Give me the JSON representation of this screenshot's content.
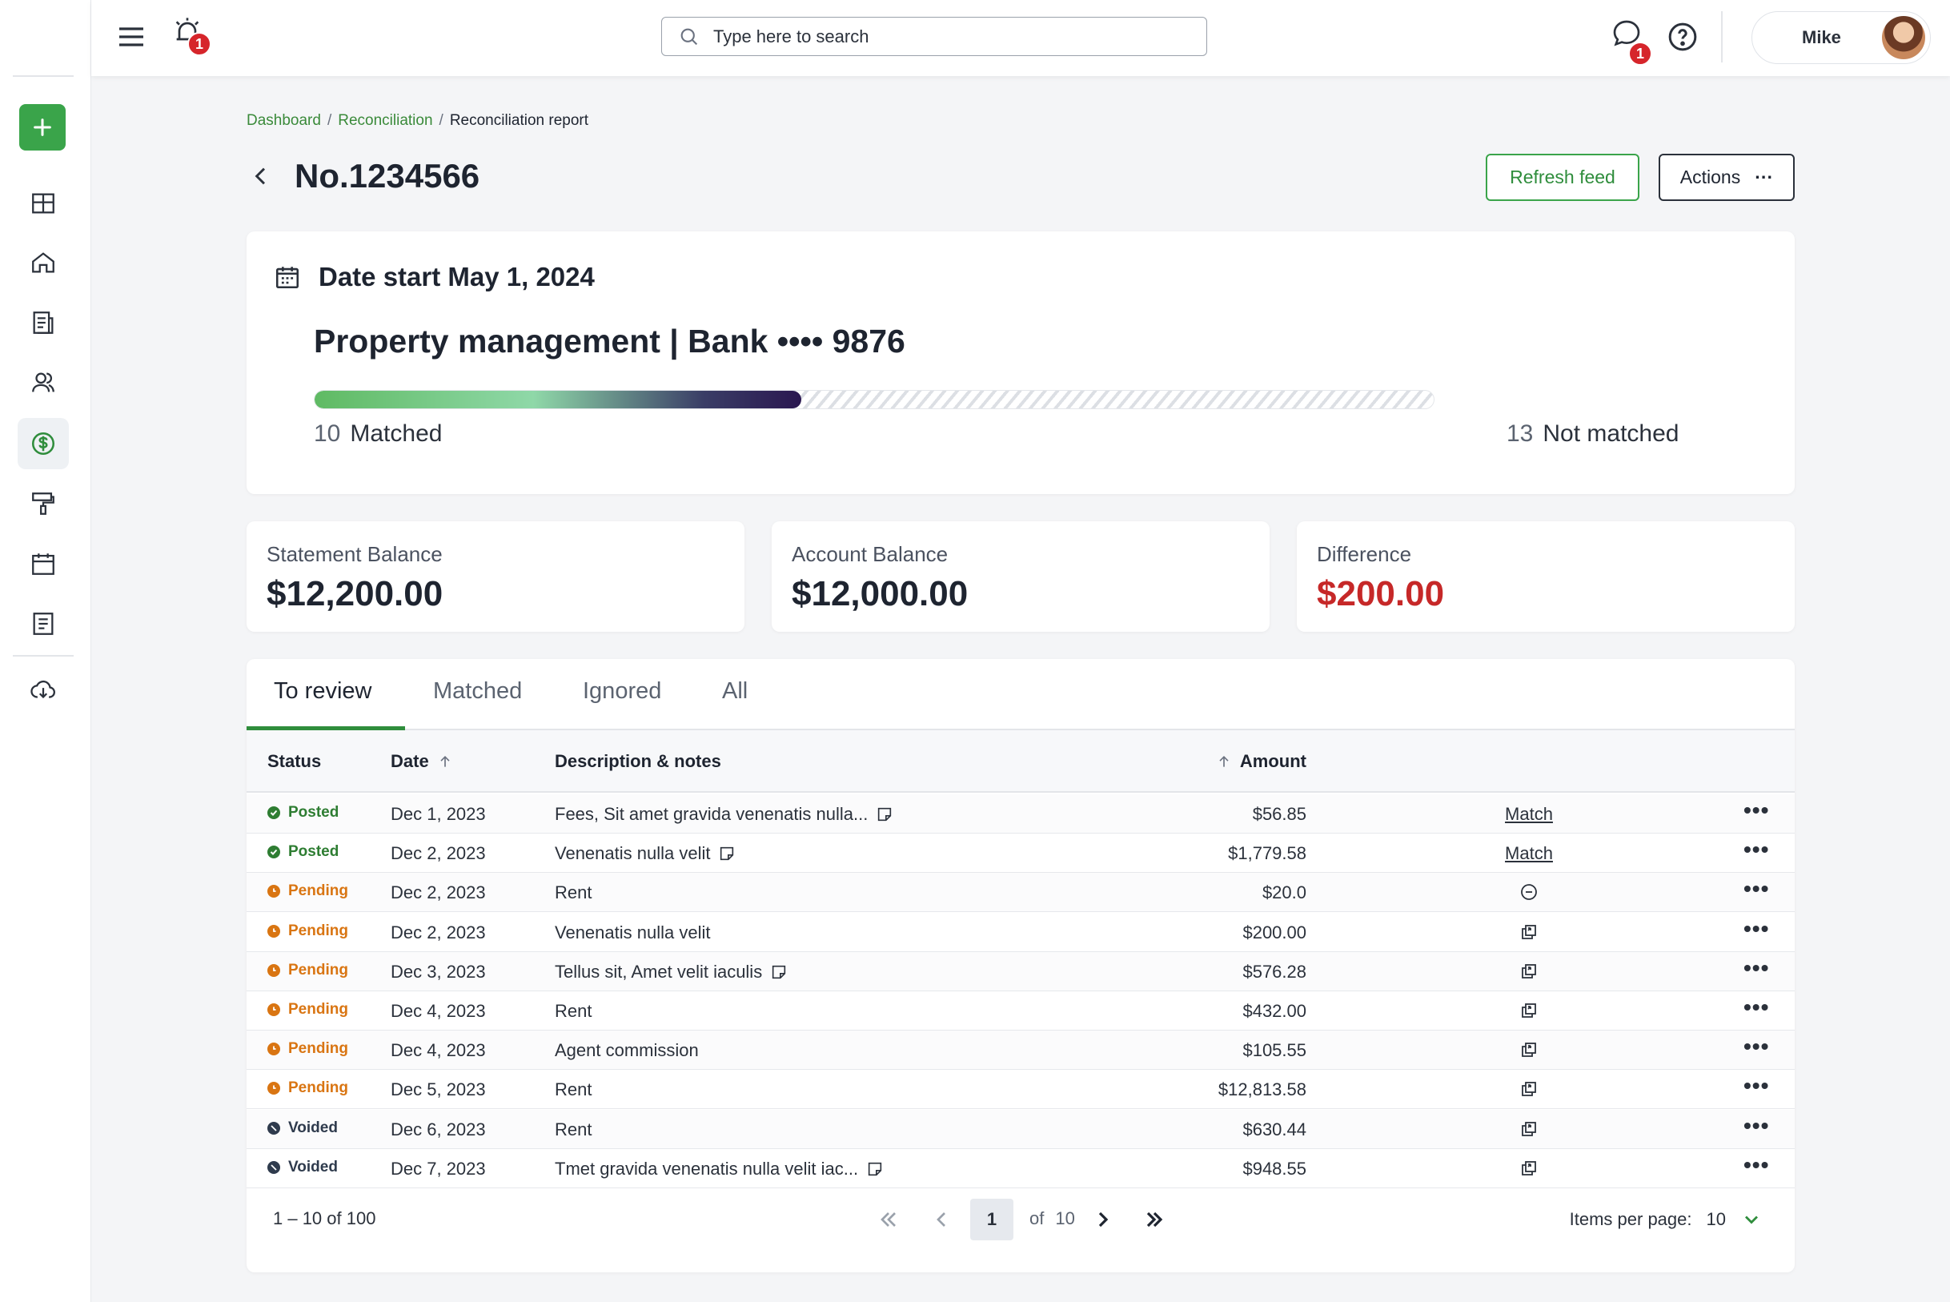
{
  "sidebar": {
    "add_label": "+",
    "items": [
      {
        "name": "dashboard",
        "icon": "grid-icon"
      },
      {
        "name": "home",
        "icon": "home-icon"
      },
      {
        "name": "documents",
        "icon": "document-icon"
      },
      {
        "name": "people",
        "icon": "users-icon"
      },
      {
        "name": "finance",
        "icon": "dollar-icon",
        "active": true
      },
      {
        "name": "maintenance",
        "icon": "paint-roller-icon"
      },
      {
        "name": "calendar",
        "icon": "calendar-icon"
      },
      {
        "name": "reports",
        "icon": "report-icon"
      },
      {
        "name": "download",
        "icon": "download-icon"
      }
    ]
  },
  "topbar": {
    "notification_count": "1",
    "chat_count": "1",
    "search_placeholder": "Type here to search",
    "user_name": "Mike"
  },
  "breadcrumb": {
    "items": [
      "Dashboard",
      "Reconciliation"
    ],
    "current": "Reconciliation report",
    "separator": "/"
  },
  "header": {
    "title": "No.1234566",
    "refresh_label": "Refresh feed",
    "actions_label": "Actions",
    "actions_dots": "···"
  },
  "summary": {
    "date_label": "Date start May 1, 2024",
    "title": "Property management | Bank •••• 9876",
    "matched_count": "10",
    "matched_label": "Matched",
    "not_matched_count": "13",
    "not_matched_label": "Not matched",
    "matched_fraction": 0.4348
  },
  "balances": {
    "statement": {
      "label": "Statement Balance",
      "value": "$12,200.00"
    },
    "account": {
      "label": "Account Balance",
      "value": "$12,000.00"
    },
    "difference": {
      "label": "Difference",
      "value": "$200.00",
      "color": "#c62828"
    }
  },
  "tabs": [
    "To review",
    "Matched",
    "Ignored",
    "All"
  ],
  "table": {
    "columns": {
      "status": "Status",
      "date": "Date",
      "description": "Description & notes",
      "amount": "Amount"
    },
    "rows": [
      {
        "status": "Posted",
        "date": "Dec 1, 2023",
        "description": "Fees, Sit amet gravida venenatis nulla...",
        "note": true,
        "amount": "$56.85",
        "action": "Match"
      },
      {
        "status": "Posted",
        "date": "Dec 2, 2023",
        "description": "Venenatis nulla velit",
        "note": true,
        "amount": "$1,779.58",
        "action": "Match"
      },
      {
        "status": "Pending",
        "date": "Dec 2, 2023",
        "description": "Rent",
        "note": false,
        "amount": "$20.0",
        "action": "minus-circle-icon"
      },
      {
        "status": "Pending",
        "date": "Dec 2, 2023",
        "description": "Venenatis nulla velit",
        "note": false,
        "amount": "$200.00",
        "action": "copy-icon"
      },
      {
        "status": "Pending",
        "date": "Dec 3, 2023",
        "description": "Tellus sit, Amet velit iaculis",
        "note": true,
        "amount": "$576.28",
        "action": "copy-icon"
      },
      {
        "status": "Pending",
        "date": "Dec 4, 2023",
        "description": "Rent",
        "note": false,
        "amount": "$432.00",
        "action": "copy-icon"
      },
      {
        "status": "Pending",
        "date": "Dec 4, 2023",
        "description": "Agent commission",
        "note": false,
        "amount": "$105.55",
        "action": "copy-icon"
      },
      {
        "status": "Pending",
        "date": "Dec 5, 2023",
        "description": "Rent",
        "note": false,
        "amount": "$12,813.58",
        "action": "copy-icon"
      },
      {
        "status": "Voided",
        "date": "Dec 6, 2023",
        "description": "Rent",
        "note": false,
        "amount": "$630.44",
        "action": "copy-icon"
      },
      {
        "status": "Voided",
        "date": "Dec 7, 2023",
        "description": "Tmet gravida venenatis nulla velit iac...",
        "note": true,
        "amount": "$948.55",
        "action": "copy-icon"
      }
    ],
    "more_label": "•••"
  },
  "status_colors": {
    "Posted": "#2e7d32",
    "Pending": "#d97512",
    "Voided": "#2f3b4d"
  },
  "pagination": {
    "range": "1 – 10 of 100",
    "current_page": "1",
    "of_label": "of",
    "total_pages": "10",
    "items_per_page_label": "Items per page:",
    "items_per_page": "10"
  }
}
